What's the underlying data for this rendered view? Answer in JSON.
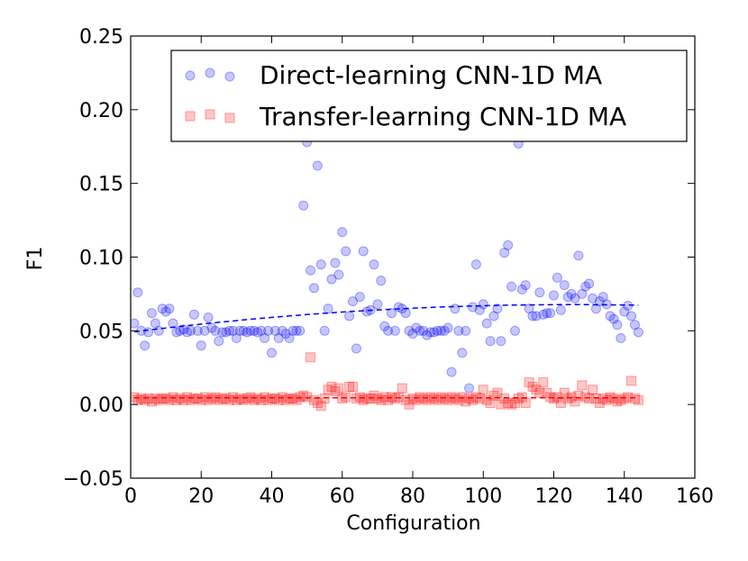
{
  "chart_data": {
    "type": "scatter",
    "title": "",
    "xlabel": "Configuration",
    "ylabel": "F1",
    "xlim": [
      0,
      160
    ],
    "ylim": [
      -0.05,
      0.25
    ],
    "xticks": [
      "0",
      "20",
      "40",
      "60",
      "80",
      "100",
      "120",
      "140",
      "160"
    ],
    "yticks": [
      "−0.05",
      "0.00",
      "0.05",
      "0.10",
      "0.15",
      "0.20",
      "0.25"
    ],
    "grid": false,
    "legend_position": "top-right",
    "series": [
      {
        "name": "Direct-learning CNN-1D MA",
        "color": "#0000ff",
        "marker": "circle",
        "x": [
          1,
          2,
          3,
          4,
          5,
          6,
          7,
          8,
          9,
          10,
          11,
          12,
          13,
          14,
          15,
          16,
          17,
          18,
          19,
          20,
          21,
          22,
          23,
          24,
          25,
          26,
          27,
          28,
          29,
          30,
          31,
          32,
          33,
          34,
          35,
          36,
          37,
          38,
          39,
          40,
          41,
          42,
          43,
          44,
          45,
          46,
          47,
          48,
          49,
          50,
          51,
          52,
          53,
          54,
          55,
          56,
          57,
          58,
          59,
          60,
          61,
          62,
          63,
          64,
          65,
          66,
          67,
          68,
          69,
          70,
          71,
          72,
          73,
          74,
          75,
          76,
          77,
          78,
          79,
          80,
          81,
          82,
          83,
          84,
          85,
          86,
          87,
          88,
          89,
          90,
          91,
          92,
          93,
          94,
          95,
          96,
          97,
          98,
          99,
          100,
          101,
          102,
          103,
          104,
          105,
          106,
          107,
          108,
          109,
          110,
          111,
          112,
          113,
          114,
          115,
          116,
          117,
          118,
          119,
          120,
          121,
          122,
          123,
          124,
          125,
          126,
          127,
          128,
          129,
          130,
          131,
          132,
          133,
          134,
          135,
          136,
          137,
          138,
          139,
          140,
          141,
          142,
          143,
          144
        ],
        "y": [
          0.055,
          0.076,
          0.05,
          0.04,
          0.049,
          0.062,
          0.055,
          0.05,
          0.065,
          0.063,
          0.065,
          0.055,
          0.049,
          0.05,
          0.051,
          0.049,
          0.05,
          0.061,
          0.05,
          0.04,
          0.05,
          0.059,
          0.052,
          0.05,
          0.043,
          0.049,
          0.049,
          0.05,
          0.05,
          0.045,
          0.05,
          0.05,
          0.049,
          0.05,
          0.05,
          0.049,
          0.05,
          0.045,
          0.05,
          0.035,
          0.05,
          0.045,
          0.05,
          0.048,
          0.045,
          0.05,
          0.05,
          0.05,
          0.135,
          0.178,
          0.091,
          0.079,
          0.162,
          0.095,
          0.05,
          0.065,
          0.085,
          0.096,
          0.088,
          0.117,
          0.104,
          0.06,
          0.07,
          0.038,
          0.073,
          0.104,
          0.063,
          0.064,
          0.095,
          0.068,
          0.084,
          0.053,
          0.05,
          0.062,
          0.05,
          0.066,
          0.065,
          0.062,
          0.05,
          0.048,
          0.052,
          0.05,
          0.05,
          0.047,
          0.049,
          0.049,
          0.05,
          0.05,
          0.05,
          0.052,
          0.022,
          0.065,
          0.05,
          0.035,
          0.05,
          0.011,
          0.066,
          0.095,
          0.064,
          0.068,
          0.055,
          0.043,
          0.06,
          0.065,
          0.043,
          0.103,
          0.108,
          0.08,
          0.05,
          0.177,
          0.078,
          0.081,
          0.065,
          0.06,
          0.06,
          0.076,
          0.061,
          0.062,
          0.062,
          0.074,
          0.086,
          0.064,
          0.081,
          0.073,
          0.075,
          0.072,
          0.101,
          0.075,
          0.08,
          0.082,
          0.072,
          0.065,
          0.07,
          0.073,
          0.068,
          0.06,
          0.058,
          0.054,
          0.045,
          0.063,
          0.067,
          0.06,
          0.054,
          0.049
        ],
        "trend": [
          0.049,
          0.0003,
          -1.2e-06
        ]
      },
      {
        "name": "Transfer-learning CNN-1D MA",
        "color": "#ff0000",
        "marker": "square",
        "x": [
          1,
          2,
          3,
          4,
          5,
          6,
          7,
          8,
          9,
          10,
          11,
          12,
          13,
          14,
          15,
          16,
          17,
          18,
          19,
          20,
          21,
          22,
          23,
          24,
          25,
          26,
          27,
          28,
          29,
          30,
          31,
          32,
          33,
          34,
          35,
          36,
          37,
          38,
          39,
          40,
          41,
          42,
          43,
          44,
          45,
          46,
          47,
          48,
          49,
          50,
          51,
          52,
          53,
          54,
          55,
          56,
          57,
          58,
          59,
          60,
          61,
          62,
          63,
          64,
          65,
          66,
          67,
          68,
          69,
          70,
          71,
          72,
          73,
          74,
          75,
          76,
          77,
          78,
          79,
          80,
          81,
          82,
          83,
          84,
          85,
          86,
          87,
          88,
          89,
          90,
          91,
          92,
          93,
          94,
          95,
          96,
          97,
          98,
          99,
          100,
          101,
          102,
          103,
          104,
          105,
          106,
          107,
          108,
          109,
          110,
          111,
          112,
          113,
          114,
          115,
          116,
          117,
          118,
          119,
          120,
          121,
          122,
          123,
          124,
          125,
          126,
          127,
          128,
          129,
          130,
          131,
          132,
          133,
          134,
          135,
          136,
          137,
          138,
          139,
          140,
          141,
          142,
          143,
          144
        ],
        "y": [
          0.005,
          0.003,
          0.004,
          0.003,
          0.004,
          0.002,
          0.004,
          0.003,
          0.004,
          0.004,
          0.003,
          0.005,
          0.003,
          0.004,
          0.003,
          0.005,
          0.003,
          0.004,
          0.004,
          0.003,
          0.005,
          0.003,
          0.004,
          0.005,
          0.003,
          0.004,
          0.004,
          0.003,
          0.005,
          0.003,
          0.004,
          0.003,
          0.004,
          0.005,
          0.003,
          0.004,
          0.003,
          0.005,
          0.003,
          0.004,
          0.004,
          0.003,
          0.005,
          0.003,
          0.004,
          0.004,
          0.003,
          0.005,
          0.006,
          0.005,
          0.032,
          0.003,
          0.001,
          -0.001,
          0.004,
          0.01,
          0.012,
          0.009,
          0.011,
          0.004,
          0.005,
          0.012,
          0.012,
          0.004,
          0.005,
          0.003,
          0.004,
          0.004,
          0.006,
          0.004,
          0.003,
          0.005,
          0.003,
          0.005,
          0.004,
          0.005,
          0.011,
          0.003,
          0,
          0.004,
          0.003,
          0.005,
          0.004,
          0.003,
          0.005,
          0.004,
          0.003,
          0.005,
          0.004,
          0.003,
          0.005,
          0.004,
          0.003,
          0.005,
          0.002,
          0.004,
          0.003,
          0.005,
          0.004,
          0.01,
          0.003,
          0.001,
          0.006,
          0.008,
          0,
          0.004,
          0.001,
          0,
          0.001,
          0.004,
          0.005,
          0.001,
          0.015,
          0.012,
          0.01,
          0.008,
          0.015,
          0.008,
          0.005,
          0.004,
          0.005,
          0.001,
          0.008,
          0.004,
          0.005,
          0.002,
          0.006,
          0.013,
          0.005,
          0.004,
          0.01,
          0.004,
          0.001,
          0.004,
          0.003,
          0.005,
          0.004,
          0.002,
          0.003,
          0.004,
          0.005,
          0.016,
          0.004,
          0.003
        ],
        "trend": [
          0.0045,
          0,
          0
        ]
      }
    ]
  }
}
